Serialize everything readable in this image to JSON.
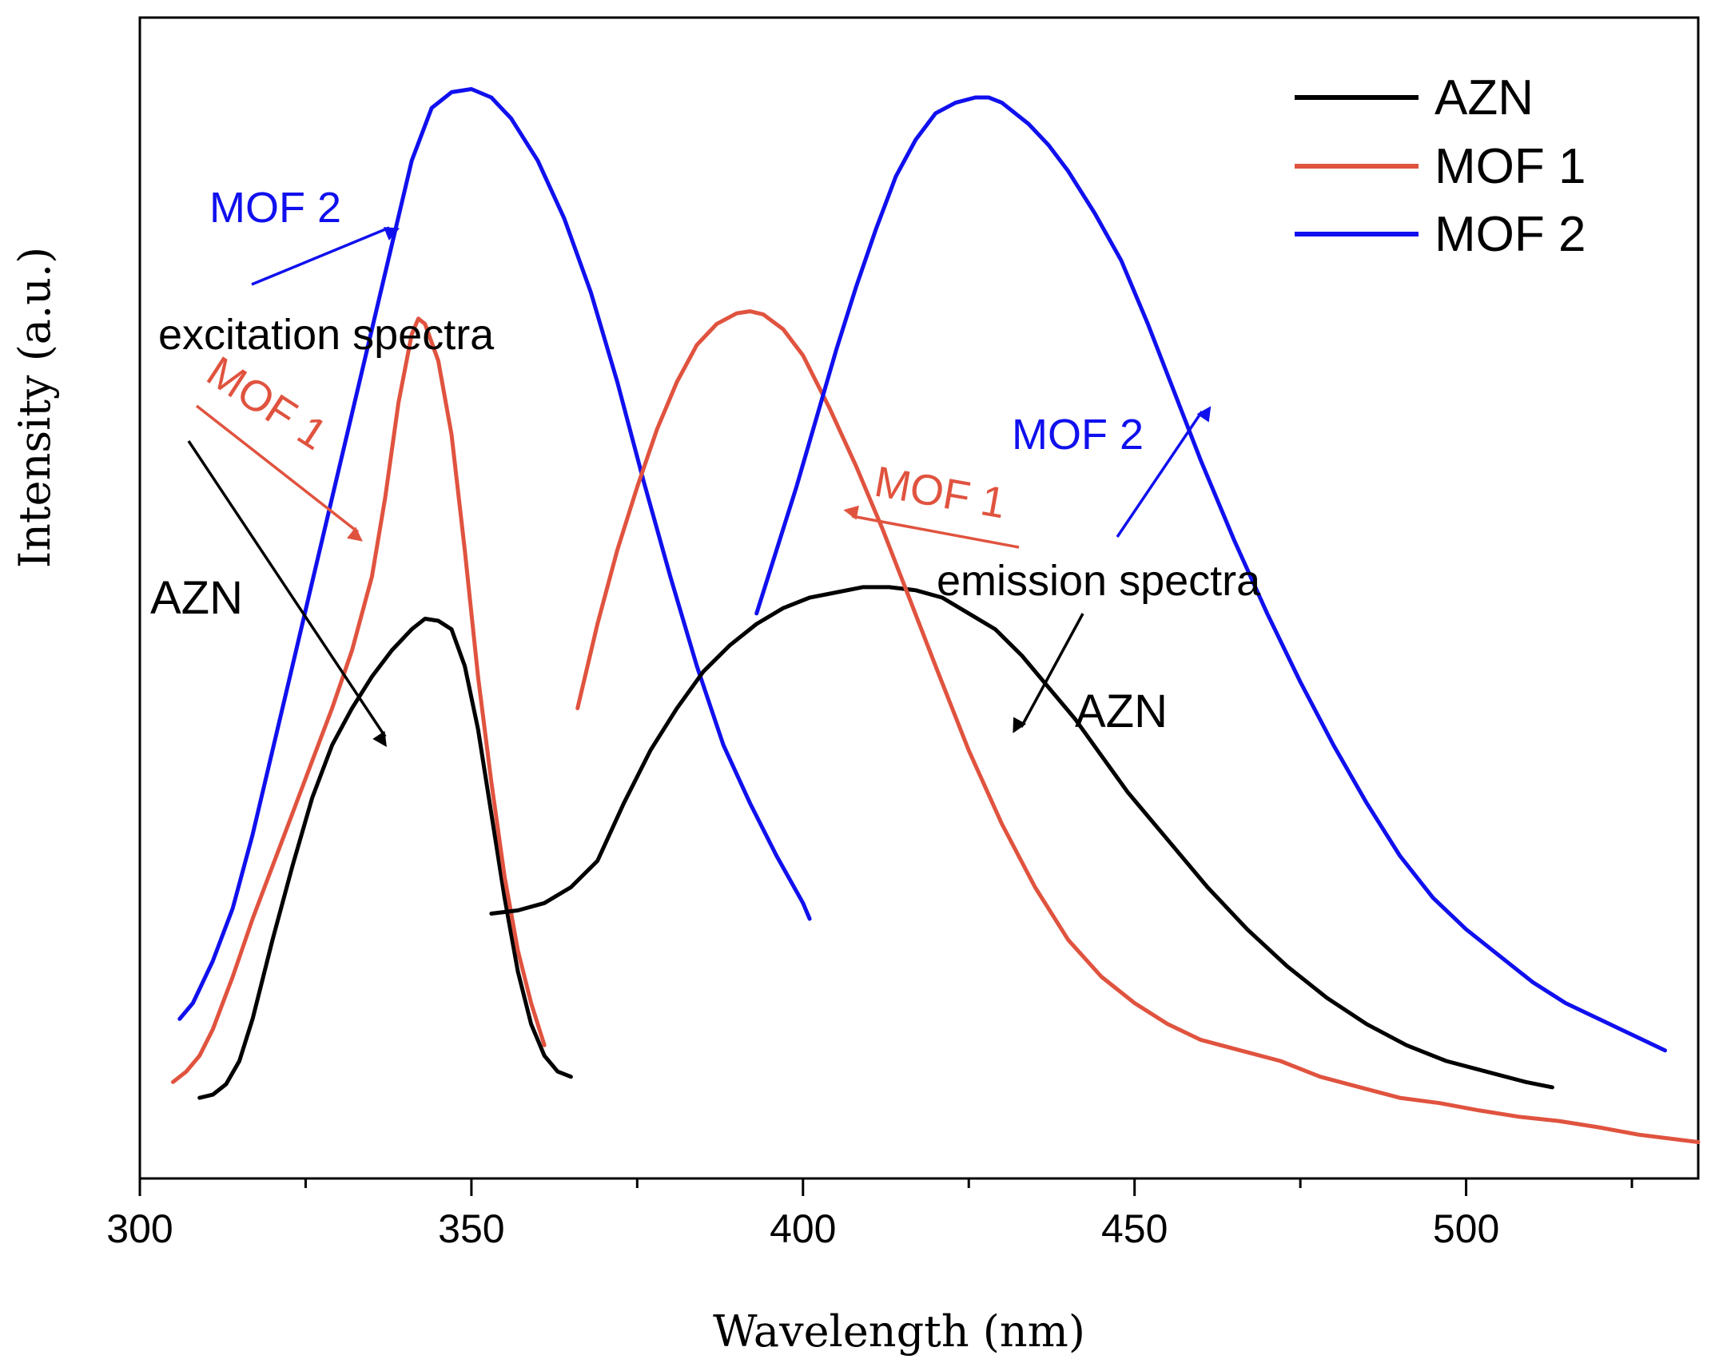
{
  "chart_data": {
    "type": "line",
    "title": "",
    "xlabel": "Wavelength (nm)",
    "ylabel": "Intensity (a.u.)",
    "xlim": [
      300,
      535
    ],
    "ylim": [
      0,
      100
    ],
    "x_ticks": [
      300,
      350,
      400,
      450,
      500
    ],
    "x_minor_ticks": [
      325,
      375,
      425,
      475,
      525
    ],
    "y_ticks_shown": false,
    "grid": false,
    "legend": {
      "position": "top-right",
      "entries": [
        {
          "name": "AZN",
          "color": "#000000"
        },
        {
          "name": "MOF 1",
          "color": "#e0533f"
        },
        {
          "name": "MOF 2",
          "color": "#1010ee"
        }
      ]
    },
    "series": [
      {
        "name": "AZN",
        "kind": "excitation",
        "color": "#000000",
        "x": [
          309,
          311,
          313,
          315,
          317,
          320,
          323,
          326,
          329,
          332,
          335,
          338,
          341,
          343,
          345,
          347,
          349,
          351,
          353,
          355,
          357,
          359,
          361,
          363,
          365
        ],
        "y": [
          5.0,
          5.3,
          6.3,
          8.5,
          12.5,
          20.0,
          27.0,
          33.5,
          38.5,
          42.0,
          45.0,
          47.5,
          49.5,
          50.5,
          50.3,
          49.5,
          46.0,
          40.0,
          32.0,
          24.0,
          17.0,
          12.0,
          9.0,
          7.5,
          7.0
        ]
      },
      {
        "name": "MOF 1",
        "kind": "excitation",
        "color": "#e0533f",
        "x": [
          305,
          307,
          309,
          311,
          314,
          317,
          320,
          323,
          326,
          329,
          332,
          335,
          337,
          339,
          341,
          342,
          343,
          345,
          347,
          349,
          351,
          353,
          355,
          357,
          359,
          361
        ],
        "y": [
          6.5,
          7.5,
          9.0,
          11.5,
          16.5,
          22.0,
          27.0,
          32.0,
          37.0,
          42.0,
          47.5,
          54.5,
          62.0,
          71.0,
          77.5,
          79.0,
          78.5,
          75.0,
          68.0,
          57.0,
          45.0,
          35.0,
          26.0,
          19.0,
          14.0,
          10.0
        ]
      },
      {
        "name": "MOF 2",
        "kind": "excitation",
        "color": "#1010ee",
        "x": [
          306,
          308,
          311,
          314,
          317,
          320,
          323,
          326,
          329,
          332,
          335,
          338,
          341,
          344,
          347,
          350,
          353,
          356,
          360,
          364,
          368,
          372,
          376,
          380,
          384,
          388,
          392,
          396,
          400,
          401
        ],
        "y": [
          12.5,
          14.0,
          18.0,
          23.0,
          30.0,
          38.0,
          46.0,
          54.0,
          62.0,
          70.0,
          78.0,
          86.0,
          94.0,
          99.0,
          100.5,
          100.8,
          100.0,
          98.0,
          94.0,
          88.5,
          81.5,
          73.0,
          63.5,
          54.5,
          46.0,
          38.5,
          33.0,
          28.0,
          23.5,
          22.0
        ]
      },
      {
        "name": "AZN",
        "kind": "emission",
        "color": "#000000",
        "x": [
          353,
          357,
          361,
          365,
          369,
          373,
          377,
          381,
          385,
          389,
          393,
          397,
          401,
          405,
          409,
          413,
          417,
          421,
          425,
          429,
          433,
          437,
          441,
          445,
          449,
          455,
          461,
          467,
          473,
          479,
          485,
          491,
          497,
          503,
          509,
          513
        ],
        "y": [
          22.5,
          22.8,
          23.5,
          25.0,
          27.5,
          33.0,
          38.0,
          42.0,
          45.5,
          48.0,
          50.0,
          51.5,
          52.5,
          53.0,
          53.5,
          53.5,
          53.2,
          52.5,
          51.0,
          49.5,
          47.0,
          44.0,
          41.0,
          37.5,
          34.0,
          29.5,
          25.0,
          21.0,
          17.5,
          14.5,
          12.0,
          10.0,
          8.5,
          7.5,
          6.5,
          6.0
        ]
      },
      {
        "name": "MOF 1",
        "kind": "emission",
        "color": "#e0533f",
        "x": [
          366,
          369,
          372,
          375,
          378,
          381,
          384,
          387,
          390,
          392,
          394,
          397,
          400,
          404,
          408,
          412,
          416,
          420,
          425,
          430,
          435,
          440,
          445,
          450,
          455,
          460,
          466,
          472,
          478,
          484,
          490,
          496,
          502,
          508,
          514,
          520,
          526,
          535
        ],
        "y": [
          42.0,
          50.0,
          57.0,
          63.0,
          68.5,
          73.0,
          76.5,
          78.5,
          79.5,
          79.7,
          79.4,
          78.0,
          75.5,
          70.5,
          65.0,
          59.0,
          52.5,
          46.0,
          38.0,
          31.0,
          25.0,
          20.0,
          16.5,
          14.0,
          12.0,
          10.5,
          9.5,
          8.5,
          7.0,
          6.0,
          5.0,
          4.5,
          3.8,
          3.2,
          2.8,
          2.2,
          1.5,
          0.8
        ]
      },
      {
        "name": "MOF 2",
        "kind": "emission",
        "color": "#1010ee",
        "x": [
          393,
          396,
          399,
          402,
          405,
          408,
          411,
          414,
          417,
          420,
          423,
          426,
          428,
          430,
          432,
          434,
          437,
          440,
          444,
          448,
          452,
          456,
          460,
          465,
          470,
          475,
          480,
          485,
          490,
          495,
          500,
          505,
          510,
          515,
          520,
          525,
          530
        ],
        "y": [
          51.0,
          57.0,
          63.0,
          69.5,
          76.0,
          82.0,
          87.5,
          92.5,
          96.0,
          98.5,
          99.5,
          100.0,
          100.0,
          99.5,
          98.5,
          97.5,
          95.5,
          93.0,
          89.0,
          84.5,
          78.5,
          72.0,
          65.5,
          58.0,
          51.0,
          44.5,
          38.5,
          33.0,
          28.0,
          24.0,
          21.0,
          18.5,
          16.0,
          14.0,
          12.5,
          11.0,
          9.5
        ]
      }
    ],
    "annotations": [
      {
        "text": "excitation spectra",
        "color": "#000000"
      },
      {
        "text": "emission spectra",
        "color": "#000000"
      },
      {
        "text": "MOF 2",
        "color": "#1010ee",
        "group": "excitation"
      },
      {
        "text": "MOF 1",
        "color": "#e0533f",
        "group": "excitation"
      },
      {
        "text": "AZN",
        "color": "#000000",
        "group": "excitation"
      },
      {
        "text": "MOF 2",
        "color": "#1010ee",
        "group": "emission"
      },
      {
        "text": "MOF 1",
        "color": "#e0533f",
        "group": "emission"
      },
      {
        "text": "AZN",
        "color": "#000000",
        "group": "emission"
      }
    ]
  }
}
